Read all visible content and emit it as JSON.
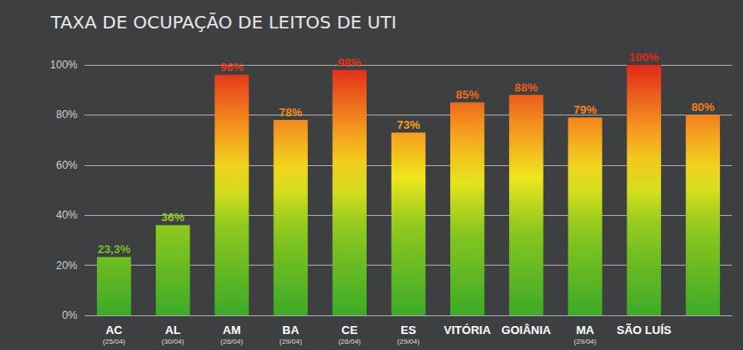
{
  "chart_data": {
    "type": "bar",
    "title": "TAXA DE OCUPAÇÃO DE LEITOS DE UTI",
    "categories": [
      "AC\n(25/04)",
      "AL\n(30/04)",
      "AM\n(26/04)",
      "BA\n(29/04)",
      "CE\n(26/04)",
      "ES\n(29/04)",
      "VITÓRIA",
      "GOIÂNIA",
      "MA\n(29/04)",
      "SÃO LUÍS",
      null
    ],
    "values": [
      23.3,
      36,
      96,
      78,
      98,
      73,
      85,
      88,
      79,
      100,
      80
    ],
    "value_labels": [
      "23,3%",
      "36%",
      "96%",
      "78%",
      "98%",
      "73%",
      "85%",
      "88%",
      "79%",
      "100%",
      "80%"
    ],
    "ylim": [
      0,
      100
    ],
    "yticks": [
      {
        "value": 0,
        "label": "0%"
      },
      {
        "value": 20,
        "label": "20%"
      },
      {
        "value": 40,
        "label": "40%"
      },
      {
        "value": 60,
        "label": "60%"
      },
      {
        "value": 80,
        "label": "80%"
      },
      {
        "value": 100,
        "label": "100%"
      }
    ],
    "grid": true,
    "data_labels": true
  }
}
